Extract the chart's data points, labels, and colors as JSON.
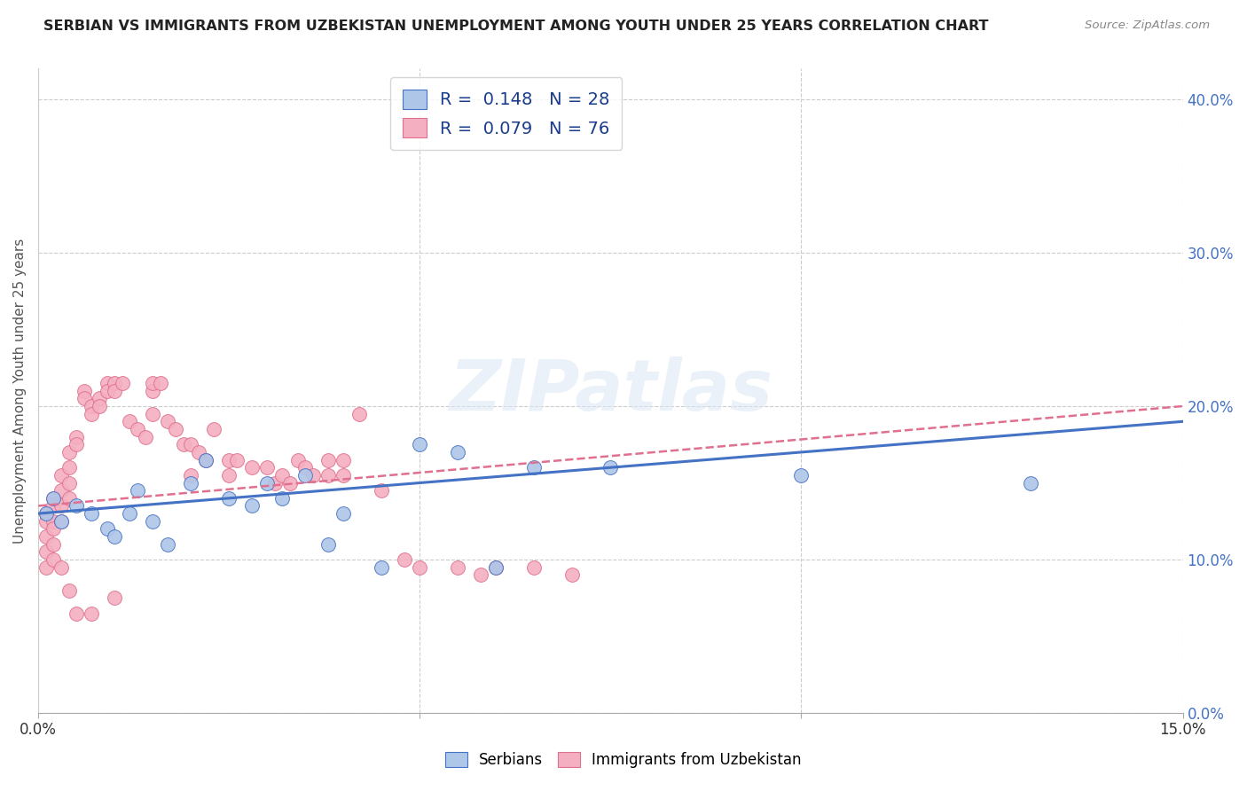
{
  "title": "SERBIAN VS IMMIGRANTS FROM UZBEKISTAN UNEMPLOYMENT AMONG YOUTH UNDER 25 YEARS CORRELATION CHART",
  "source": "Source: ZipAtlas.com",
  "ylabel": "Unemployment Among Youth under 25 years",
  "x_min": 0.0,
  "x_max": 0.15,
  "y_min": 0.0,
  "y_max": 0.42,
  "y_ticks": [
    0.0,
    0.1,
    0.2,
    0.3,
    0.4
  ],
  "watermark": "ZIPatlas",
  "serbian_color": "#aec6e8",
  "uzbekistan_color": "#f4afc0",
  "serbian_line_color": "#4472c4",
  "uzbekistan_line_color": "#e07090",
  "serbian_R": 0.148,
  "serbian_N": 28,
  "uzbekistan_R": 0.079,
  "uzbekistan_N": 76,
  "serbian_x": [
    0.001,
    0.002,
    0.003,
    0.005,
    0.007,
    0.009,
    0.01,
    0.012,
    0.013,
    0.015,
    0.017,
    0.02,
    0.022,
    0.025,
    0.028,
    0.03,
    0.032,
    0.035,
    0.038,
    0.04,
    0.045,
    0.05,
    0.055,
    0.06,
    0.065,
    0.075,
    0.1,
    0.13
  ],
  "serbian_y": [
    0.13,
    0.14,
    0.125,
    0.135,
    0.13,
    0.12,
    0.115,
    0.13,
    0.145,
    0.125,
    0.11,
    0.15,
    0.165,
    0.14,
    0.135,
    0.15,
    0.14,
    0.155,
    0.11,
    0.13,
    0.095,
    0.175,
    0.17,
    0.095,
    0.16,
    0.16,
    0.155,
    0.15
  ],
  "uzbekistan_x": [
    0.001,
    0.001,
    0.001,
    0.001,
    0.001,
    0.002,
    0.002,
    0.002,
    0.002,
    0.002,
    0.002,
    0.003,
    0.003,
    0.003,
    0.003,
    0.003,
    0.004,
    0.004,
    0.004,
    0.004,
    0.004,
    0.005,
    0.005,
    0.005,
    0.006,
    0.006,
    0.007,
    0.007,
    0.007,
    0.008,
    0.008,
    0.009,
    0.009,
    0.01,
    0.01,
    0.01,
    0.011,
    0.012,
    0.013,
    0.014,
    0.015,
    0.015,
    0.015,
    0.016,
    0.017,
    0.018,
    0.019,
    0.02,
    0.02,
    0.021,
    0.022,
    0.023,
    0.025,
    0.025,
    0.026,
    0.028,
    0.03,
    0.031,
    0.032,
    0.033,
    0.034,
    0.035,
    0.036,
    0.038,
    0.038,
    0.04,
    0.04,
    0.042,
    0.045,
    0.048,
    0.05,
    0.055,
    0.058,
    0.06,
    0.065,
    0.07
  ],
  "uzbekistan_y": [
    0.13,
    0.125,
    0.115,
    0.105,
    0.095,
    0.14,
    0.135,
    0.125,
    0.12,
    0.11,
    0.1,
    0.155,
    0.145,
    0.135,
    0.125,
    0.095,
    0.17,
    0.16,
    0.15,
    0.14,
    0.08,
    0.18,
    0.175,
    0.065,
    0.21,
    0.205,
    0.2,
    0.195,
    0.065,
    0.205,
    0.2,
    0.215,
    0.21,
    0.215,
    0.21,
    0.075,
    0.215,
    0.19,
    0.185,
    0.18,
    0.21,
    0.215,
    0.195,
    0.215,
    0.19,
    0.185,
    0.175,
    0.175,
    0.155,
    0.17,
    0.165,
    0.185,
    0.165,
    0.155,
    0.165,
    0.16,
    0.16,
    0.15,
    0.155,
    0.15,
    0.165,
    0.16,
    0.155,
    0.165,
    0.155,
    0.165,
    0.155,
    0.195,
    0.145,
    0.1,
    0.095,
    0.095,
    0.09,
    0.095,
    0.095,
    0.09
  ]
}
